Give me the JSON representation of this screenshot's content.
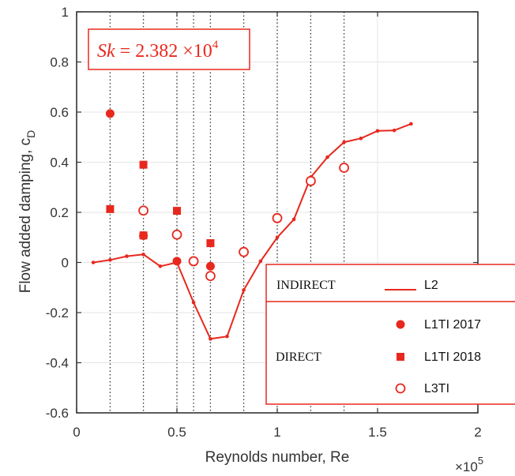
{
  "chart_data": {
    "type": "scatter",
    "xlabel": "Reynolds number, Re",
    "x_multiplier": "×10",
    "x_multiplier_exp": "5",
    "ylabel": "Flow added damping, c",
    "ylabel_sub": "D",
    "xlim": [
      0,
      2
    ],
    "ylim": [
      -0.6,
      1
    ],
    "xticks": [
      "0",
      "0.5",
      "1",
      "1.5",
      "2"
    ],
    "yticks": [
      "1",
      "0.8",
      "0.6",
      "0.4",
      "0.2",
      "0",
      "-0.2",
      "-0.4",
      "-0.6"
    ],
    "grid": true,
    "vlines_x": [
      0.167,
      0.333,
      0.5,
      0.583,
      0.667,
      0.833,
      1.0,
      1.167,
      1.333
    ],
    "annotation": {
      "prefix": "Sk",
      "text": " = 2.382 ×10",
      "exp": "4"
    },
    "colors": {
      "series": "#e8281e",
      "axis": "#333333",
      "grid": "#e6e6e6",
      "vline": "#333333"
    },
    "series": [
      {
        "name": "L2",
        "marker": "line",
        "x": [
          0.083,
          0.167,
          0.25,
          0.333,
          0.417,
          0.5,
          0.583,
          0.667,
          0.75,
          0.833,
          0.917,
          1.0,
          1.083,
          1.167,
          1.25,
          1.333,
          1.417,
          1.5,
          1.583,
          1.667
        ],
        "y": [
          0.0,
          0.01,
          0.025,
          0.032,
          -0.015,
          0.0,
          -0.16,
          -0.305,
          -0.295,
          -0.11,
          0.005,
          0.1,
          0.172,
          0.34,
          0.42,
          0.48,
          0.495,
          0.525,
          0.527,
          0.553
        ]
      },
      {
        "name": "L1TI 2017",
        "marker": "filled-circle",
        "x": [
          0.167,
          0.333,
          0.5,
          0.667
        ],
        "y": [
          0.594,
          0.107,
          0.005,
          -0.015
        ]
      },
      {
        "name": "L1TI 2018",
        "marker": "filled-square",
        "x": [
          0.167,
          0.333,
          0.333,
          0.5,
          0.667
        ],
        "y": [
          0.213,
          0.39,
          0.108,
          0.206,
          0.077
        ]
      },
      {
        "name": "L3TI",
        "marker": "open-circle",
        "x": [
          0.333,
          0.5,
          0.583,
          0.667,
          0.833,
          1.0,
          1.167,
          1.333
        ],
        "y": [
          0.207,
          0.111,
          0.005,
          -0.054,
          0.042,
          0.177,
          0.325,
          0.378
        ]
      }
    ],
    "legend": {
      "placement": "lower-right",
      "groups": [
        {
          "label": "INDIRECT",
          "entries": [
            "L2"
          ]
        },
        {
          "label": "DIRECT",
          "entries": [
            "L1TI 2017",
            "L1TI 2018",
            "L3TI"
          ]
        }
      ]
    }
  }
}
